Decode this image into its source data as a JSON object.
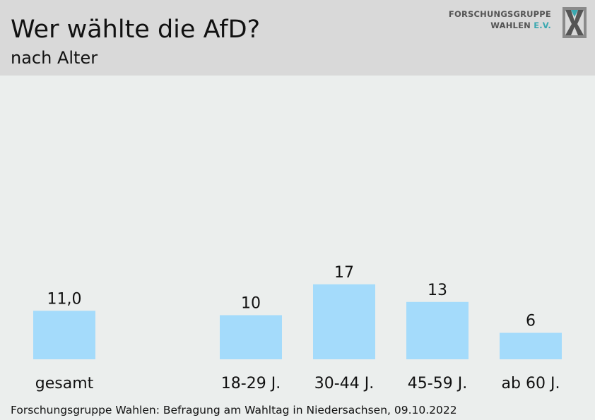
{
  "header": {
    "title": "Wer wählte die AfD?",
    "subtitle": "nach Alter"
  },
  "logo": {
    "line1": "FORSCHUNGSGRUPPE",
    "line2_main": "WAHLEN",
    "line2_accent": "E.V.",
    "icon": "fgw-x-logo-icon",
    "accent_color": "#3aa8b0"
  },
  "chart_data": {
    "type": "bar",
    "categories": [
      "gesamt",
      "18-29 J.",
      "30-44 J.",
      "45-59 J.",
      "ab 60 J."
    ],
    "values": [
      11.0,
      10,
      17,
      13,
      6
    ],
    "value_labels": [
      "11,0",
      "10",
      "17",
      "13",
      "6"
    ],
    "title": "Wer wählte die AfD?",
    "subtitle": "nach Alter",
    "bar_color": "#a4dbfb",
    "ylim": [
      0,
      30
    ],
    "grid": false,
    "legend": "none"
  },
  "footer": {
    "source": "Forschungsgruppe Wahlen: Befragung am Wahltag in Niedersachsen, 09.10.2022"
  }
}
